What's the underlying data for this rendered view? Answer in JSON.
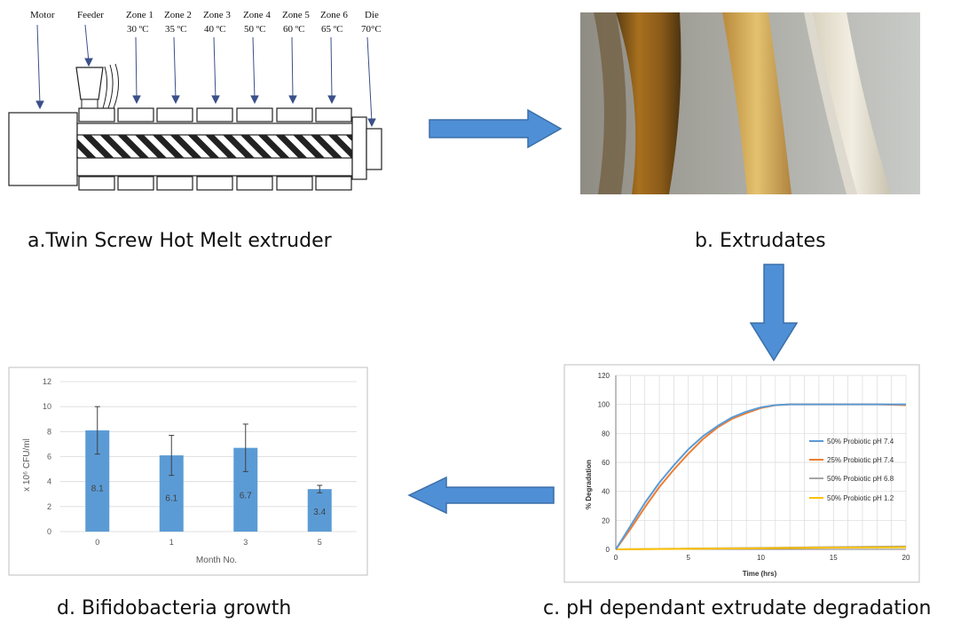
{
  "captions": {
    "a": "a.Twin Screw Hot Melt extruder",
    "b": "b. Extrudates",
    "c": "c. pH dependant extrudate degradation",
    "d": "d. Bifidobacteria growth"
  },
  "extruder": {
    "motor": "Motor",
    "feeder": "Feeder",
    "die": "Die",
    "die_temp": "70°C",
    "zones": [
      {
        "name": "Zone 1",
        "temp": "30 ºC"
      },
      {
        "name": "Zone 2",
        "temp": "35 ºC"
      },
      {
        "name": "Zone 3",
        "temp": "40 ºC"
      },
      {
        "name": "Zone 4",
        "temp": "50 ºC"
      },
      {
        "name": "Zone 5",
        "temp": "60 ºC"
      },
      {
        "name": "Zone 6",
        "temp": "65 ºC"
      }
    ]
  },
  "colors": {
    "arrow_fill": "#4f8fd6",
    "arrow_stroke": "#3b6fa8",
    "bar_fill": "#5b9bd5",
    "series": [
      "#5b9bd5",
      "#ed7d31",
      "#a5a5a5",
      "#ffc000"
    ]
  },
  "chart_data": [
    {
      "type": "line",
      "title": "",
      "xlabel": "Time (hrs)",
      "ylabel": "% Degradation",
      "xlim": [
        0,
        20
      ],
      "ylim": [
        0,
        120
      ],
      "xticks": [
        "0",
        "5",
        "10",
        "15",
        "20"
      ],
      "yticks": [
        "0",
        "20",
        "40",
        "60",
        "80",
        "100",
        "120"
      ],
      "grid": true,
      "legend_position": "right",
      "series": [
        {
          "name": "50% Probiotic pH 7.4",
          "x": [
            0,
            1,
            2,
            3,
            4,
            5,
            6,
            7,
            8,
            9,
            10,
            11,
            12,
            14,
            16,
            18,
            20
          ],
          "y": [
            0,
            16,
            32,
            46,
            58,
            69,
            78,
            85,
            91,
            95,
            98,
            99.5,
            100,
            100,
            100,
            100,
            100
          ]
        },
        {
          "name": "25% Probiotic pH 7.4",
          "x": [
            0,
            1,
            2,
            3,
            4,
            5,
            6,
            7,
            8,
            9,
            10,
            11,
            12,
            14,
            16,
            18,
            20
          ],
          "y": [
            0,
            14,
            29,
            43,
            55,
            66,
            76,
            84,
            90,
            94,
            97.5,
            99.5,
            100,
            100,
            100,
            100,
            99.5
          ]
        },
        {
          "name": "50% Probiotic pH 6.8",
          "x": [
            0,
            5,
            10,
            15,
            20
          ],
          "y": [
            0,
            0.5,
            1,
            1.5,
            2
          ]
        },
        {
          "name": "50% Probiotic pH 1.2",
          "x": [
            0,
            5,
            10,
            15,
            20
          ],
          "y": [
            0,
            0.4,
            0.8,
            1.2,
            1.5
          ]
        }
      ]
    },
    {
      "type": "bar",
      "title": "",
      "xlabel": "Month No.",
      "ylabel": "x 10⁶ CFU/ml",
      "ylim": [
        0,
        12
      ],
      "yticks": [
        "0",
        "2",
        "4",
        "6",
        "8",
        "10",
        "12"
      ],
      "grid": true,
      "categories": [
        "0",
        "1",
        "3",
        "5"
      ],
      "values": [
        8.1,
        6.1,
        6.7,
        3.4
      ],
      "value_labels": [
        "8.1",
        "6.1",
        "6.7",
        "3.4"
      ],
      "error": [
        1.9,
        1.6,
        1.9,
        0.3
      ]
    }
  ]
}
